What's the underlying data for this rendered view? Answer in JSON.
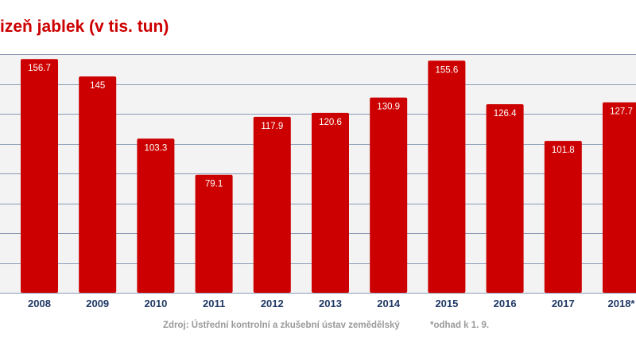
{
  "title": "izeň jablek (v tis. tun)",
  "source": "Zdroj: Ústřední kontrolní a zkušební ústav zemědělský",
  "footnote": "*odhad k 1. 9.",
  "colors": {
    "bar": "#cc0000",
    "title": "#cc0000",
    "category_label": "#1f3864",
    "gridline": "#8a9bb5",
    "plot_background": "#f3f3f3",
    "source_text": "#9a9a9a"
  },
  "chart_data": {
    "type": "bar",
    "title": "izeň jablek (v tis. tun)",
    "categories": [
      "2008",
      "2009",
      "2010",
      "2011",
      "2012",
      "2013",
      "2014",
      "2015",
      "2016",
      "2017",
      "2018*"
    ],
    "values": [
      156.7,
      145,
      103.3,
      79.1,
      117.9,
      120.6,
      130.9,
      155.6,
      126.4,
      101.8,
      127.7
    ],
    "value_labels": [
      "156.7",
      "145",
      "103.3",
      "79.1",
      "117.9",
      "120.6",
      "130.9",
      "155.6",
      "126.4",
      "101.8",
      "127.7"
    ],
    "xlabel": "",
    "ylabel": "",
    "ylim": [
      0,
      160
    ],
    "gridlines": [
      0,
      20,
      40,
      60,
      80,
      100,
      120,
      140,
      160
    ],
    "grid": true,
    "legend": "none"
  }
}
